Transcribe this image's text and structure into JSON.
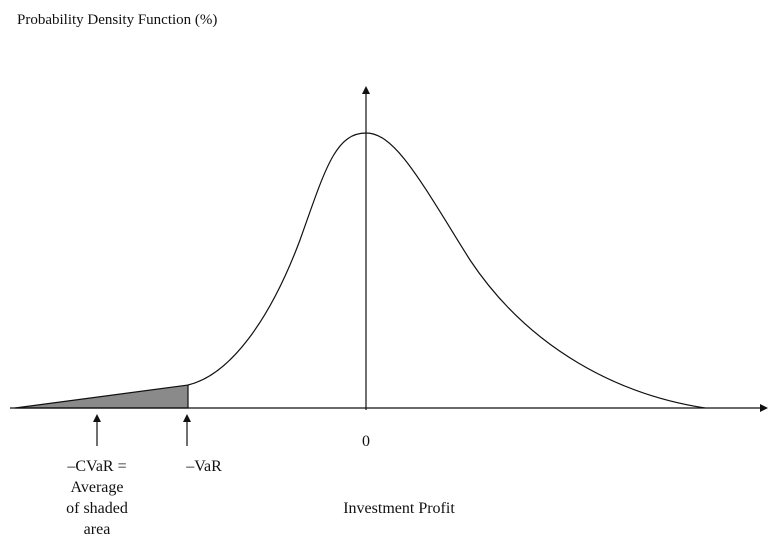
{
  "title": "Probability Density Function (%)",
  "x_axis": {
    "label": "Investment Profit",
    "origin_label": "0"
  },
  "markers": [
    {
      "lines": [
        "–CVaR =",
        "Average",
        "of shaded",
        "area"
      ]
    },
    {
      "lines": [
        "–VaR"
      ]
    }
  ]
}
